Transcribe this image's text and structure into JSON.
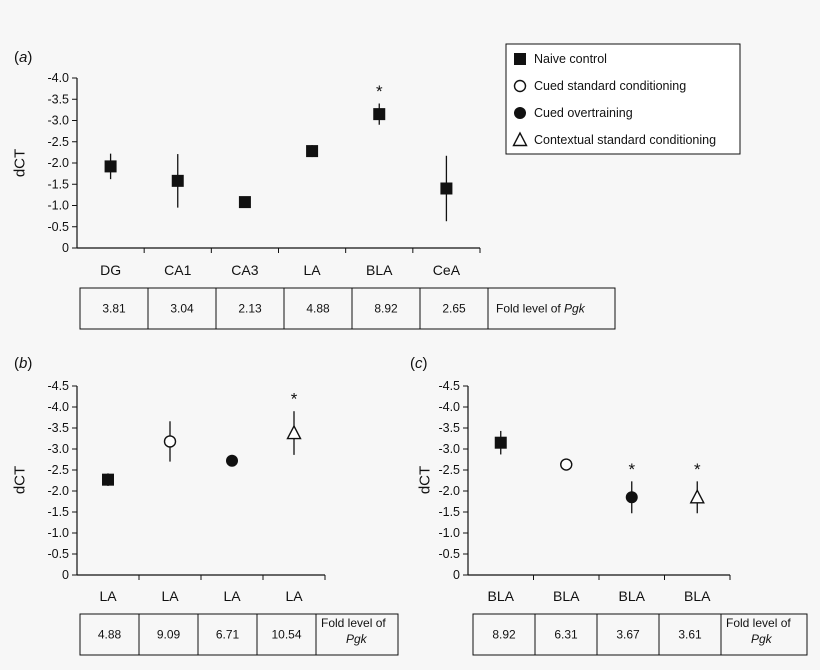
{
  "chart_data": [
    {
      "panel": "(a)",
      "type": "scatter",
      "ylabel": "dCT",
      "ylim": [
        0,
        -4.0
      ],
      "yticks": [
        "-4.0",
        "-3.5",
        "-3.0",
        "-2.5",
        "-2.0",
        "-1.5",
        "-1.0",
        "-0.5",
        "0"
      ],
      "categories": [
        "DG",
        "CA1",
        "CA3",
        "LA",
        "BLA",
        "CeA"
      ],
      "series": [
        {
          "name": "Naive control",
          "marker": "square-filled",
          "values": [
            -1.92,
            -1.58,
            -1.08,
            -2.28,
            -3.15,
            -1.4
          ],
          "errors": [
            0.3,
            0.63,
            0.07,
            0.14,
            0.25,
            0.77
          ]
        }
      ],
      "significance": [
        "",
        "",
        "",
        "",
        "*",
        ""
      ],
      "table": {
        "values": [
          "3.81",
          "3.04",
          "2.13",
          "4.88",
          "8.92",
          "2.65"
        ],
        "label": "Fold level of ",
        "label_italic": "Pgk"
      }
    },
    {
      "panel": "(b)",
      "type": "scatter",
      "ylabel": "dCT",
      "ylim": [
        0,
        -4.5
      ],
      "yticks": [
        "-4.5",
        "-4.0",
        "-3.5",
        "-3.0",
        "-2.5",
        "-2.0",
        "-1.5",
        "-1.0",
        "-0.5",
        "0"
      ],
      "categories": [
        "LA",
        "LA",
        "LA",
        "LA"
      ],
      "points": [
        {
          "series": "Naive control",
          "marker": "square-filled",
          "value": -2.27,
          "error": 0.15
        },
        {
          "series": "Cued standard conditioning",
          "marker": "circle-open",
          "value": -3.18,
          "error": 0.48
        },
        {
          "series": "Cued overtraining",
          "marker": "circle-filled",
          "value": -2.72,
          "error": 0.0
        },
        {
          "series": "Contextual standard conditioning",
          "marker": "triangle-open",
          "value": -3.38,
          "error": 0.52
        }
      ],
      "significance": [
        "",
        "",
        "",
        "*"
      ],
      "table": {
        "values": [
          "4.88",
          "9.09",
          "6.71",
          "10.54"
        ],
        "label": "Fold level of",
        "label_italic": "Pgk"
      }
    },
    {
      "panel": "(c)",
      "type": "scatter",
      "ylabel": "dCT",
      "ylim": [
        0,
        -4.5
      ],
      "yticks": [
        "-4.5",
        "-4.0",
        "-3.5",
        "-3.0",
        "-2.5",
        "-2.0",
        "-1.5",
        "-1.0",
        "-0.5",
        "0"
      ],
      "categories": [
        "BLA",
        "BLA",
        "BLA",
        "BLA"
      ],
      "points": [
        {
          "series": "Naive control",
          "marker": "square-filled",
          "value": -3.15,
          "error": 0.28
        },
        {
          "series": "Cued standard conditioning",
          "marker": "circle-open",
          "value": -2.63,
          "error": 0.1
        },
        {
          "series": "Cued overtraining",
          "marker": "circle-filled",
          "value": -1.85,
          "error": 0.38
        },
        {
          "series": "Contextual standard conditioning",
          "marker": "triangle-open",
          "value": -1.85,
          "error": 0.38
        }
      ],
      "significance": [
        "",
        "",
        "*",
        "*"
      ],
      "table": {
        "values": [
          "8.92",
          "6.31",
          "3.67",
          "3.61"
        ],
        "label": "Fold level of",
        "label_italic": "Pgk"
      }
    }
  ],
  "legend": {
    "placement": "top-right",
    "items": [
      {
        "label": "Naive control",
        "marker": "square-filled"
      },
      {
        "label": "Cued standard conditioning",
        "marker": "circle-open"
      },
      {
        "label": "Cued overtraining",
        "marker": "circle-filled"
      },
      {
        "label": "Contextual standard conditioning",
        "marker": "triangle-open"
      }
    ]
  }
}
